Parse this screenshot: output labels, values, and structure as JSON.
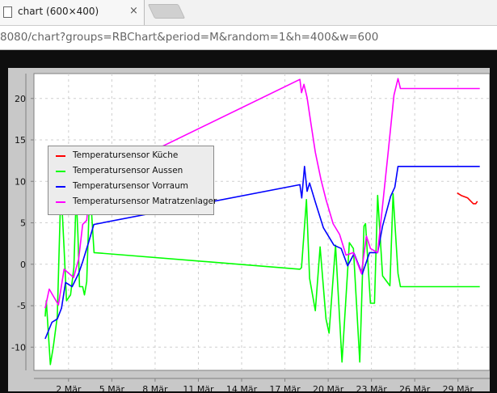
{
  "browser": {
    "tab_title": "chart (600×400)",
    "close_glyph": "×",
    "url": "8080/chart?groups=RBChart&period=M&random=1&h=400&w=600"
  },
  "chart_data": {
    "type": "line",
    "title": "",
    "xlabel": "",
    "ylabel": "",
    "x_unit": "day of March",
    "xlim": [
      -0.4,
      31.2
    ],
    "ylim": [
      -12.8,
      23.0
    ],
    "grid": true,
    "legend_placement": "top-left",
    "x_ticks": [
      {
        "value": 2,
        "label": "2 Mär"
      },
      {
        "value": 5,
        "label": "5 Mär"
      },
      {
        "value": 8,
        "label": "8 Mär"
      },
      {
        "value": 11,
        "label": "11 Mär"
      },
      {
        "value": 14,
        "label": "14 Mär"
      },
      {
        "value": 17,
        "label": "17 Mär"
      },
      {
        "value": 20,
        "label": "20 Mär"
      },
      {
        "value": 23,
        "label": "23 Mär"
      },
      {
        "value": 26,
        "label": "26 Mär"
      },
      {
        "value": 29,
        "label": "29 Mär"
      }
    ],
    "y_ticks": [
      {
        "value": 20,
        "label": "20"
      },
      {
        "value": 15,
        "label": "15"
      },
      {
        "value": 10,
        "label": "10"
      },
      {
        "value": 5,
        "label": "5"
      },
      {
        "value": 0,
        "label": "0"
      },
      {
        "value": -5,
        "label": "-5"
      },
      {
        "value": -10,
        "label": "-10"
      }
    ],
    "series": [
      {
        "name": "Temperatursensor Küche",
        "color": "#ff0000",
        "x": [
          28.94,
          29.22,
          29.67,
          30.06,
          30.23,
          30.34
        ],
        "y": [
          8.6,
          8.3,
          8.0,
          7.3,
          7.3,
          7.6
        ]
      },
      {
        "name": "Temperatursensor Aussen",
        "color": "#00ff00",
        "x": [
          0.38,
          0.46,
          0.74,
          0.94,
          1.22,
          1.47,
          1.69,
          1.86,
          2.14,
          2.37,
          2.53,
          2.65,
          2.76,
          2.98,
          3.1,
          3.26,
          3.47,
          3.54,
          3.77,
          18.04,
          18.15,
          18.49,
          18.71,
          19.11,
          19.44,
          19.85,
          20.06,
          20.51,
          20.96,
          21.47,
          21.75,
          22.19,
          22.48,
          22.59,
          22.93,
          23.21,
          23.43,
          23.77,
          24.28,
          24.5,
          24.84,
          25.01,
          30.51
        ],
        "y": [
          -6.3,
          -4.4,
          -12.1,
          -10.0,
          -6.3,
          9.5,
          1.9,
          -4.4,
          -3.7,
          -0.4,
          8.3,
          3.6,
          -2.7,
          -2.7,
          -3.7,
          -2.1,
          9.2,
          7.8,
          1.4,
          -0.6,
          -0.4,
          7.8,
          -1.7,
          -5.6,
          2.1,
          -6.6,
          -8.3,
          2.3,
          -11.8,
          2.6,
          1.9,
          -11.8,
          4.6,
          4.9,
          -4.7,
          -4.7,
          8.3,
          -1.4,
          -2.6,
          8.5,
          -1.1,
          -2.7,
          -2.7
        ]
      },
      {
        "name": "Temperatursensor Vorraum",
        "color": "#0000ff",
        "x": [
          0.38,
          0.85,
          1.22,
          1.51,
          1.79,
          2.25,
          2.7,
          2.98,
          3.38,
          3.75,
          18.04,
          18.17,
          18.36,
          18.54,
          18.71,
          19.11,
          19.67,
          20.4,
          20.9,
          21.35,
          21.8,
          22.36,
          22.87,
          23.43,
          23.77,
          24.33,
          24.62,
          24.84,
          30.51
        ],
        "y": [
          -9.0,
          -7.0,
          -6.6,
          -5.3,
          -2.2,
          -2.7,
          -1.1,
          0.3,
          2.6,
          4.8,
          9.6,
          8.0,
          11.8,
          8.8,
          9.8,
          7.5,
          4.4,
          2.3,
          1.9,
          -0.2,
          1.3,
          -1.2,
          1.4,
          1.4,
          4.6,
          8.2,
          9.3,
          11.8,
          11.8
        ]
      },
      {
        "name": "Temperatursensor Matratzenlager",
        "color": "#ff00ff",
        "x": [
          0.38,
          0.66,
          1.3,
          1.69,
          2.35,
          2.7,
          2.98,
          3.26,
          3.47,
          3.75,
          18.04,
          18.15,
          18.32,
          18.54,
          18.83,
          19.11,
          19.5,
          19.85,
          20.34,
          20.79,
          21.24,
          21.75,
          22.3,
          22.65,
          22.93,
          23.43,
          24.16,
          24.56,
          24.84,
          25.01,
          30.51
        ],
        "y": [
          -5.3,
          -3.0,
          -4.9,
          -0.6,
          -1.6,
          0.6,
          4.8,
          5.3,
          9.2,
          10.2,
          22.3,
          20.7,
          21.7,
          20.1,
          16.7,
          13.5,
          10.2,
          7.8,
          4.9,
          3.6,
          1.1,
          1.4,
          -1.1,
          3.4,
          1.9,
          1.4,
          13.5,
          20.4,
          22.4,
          21.2,
          21.2
        ]
      }
    ]
  }
}
